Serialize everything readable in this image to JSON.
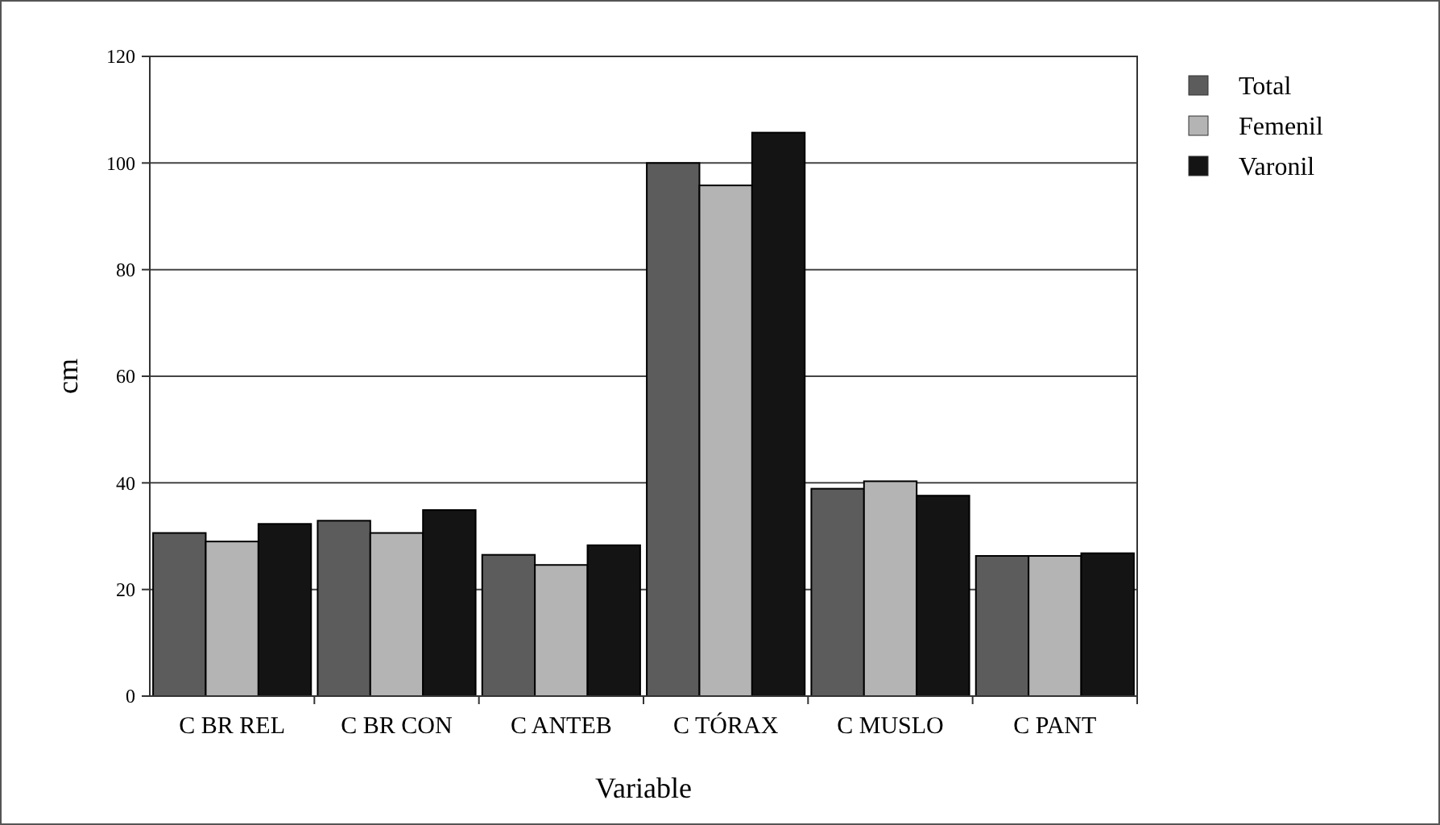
{
  "chart_data": {
    "type": "bar",
    "xlabel": "Variable",
    "ylabel": "cm",
    "categories": [
      "C BR REL",
      "C BR CON",
      "C ANTEB",
      "C TÓRAX",
      "C MUSLO",
      "C PANT"
    ],
    "series": [
      {
        "name": "Total",
        "color": "#5c5c5c",
        "values": [
          30.6,
          32.9,
          26.5,
          100,
          38.9,
          26.3
        ]
      },
      {
        "name": "Femenil",
        "color": "#b4b4b4",
        "values": [
          29,
          30.6,
          24.6,
          95.8,
          40.3,
          26.3
        ]
      },
      {
        "name": "Varonil",
        "color": "#141414",
        "values": [
          32.3,
          34.9,
          28.3,
          105.7,
          37.6,
          26.8
        ]
      }
    ],
    "ylim": [
      0,
      120
    ],
    "yticks": [
      0,
      20,
      40,
      60,
      80,
      100,
      120
    ],
    "grid": "y",
    "legend": "top right"
  }
}
